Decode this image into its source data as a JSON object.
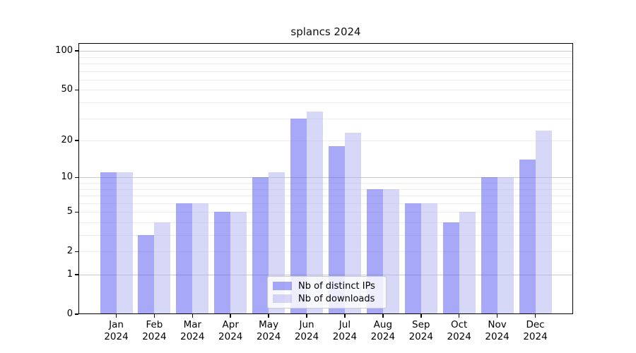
{
  "figure": {
    "title": "splancs 2024"
  },
  "chart_data": {
    "type": "bar",
    "title": "splancs 2024",
    "categories": [
      "Jan 2024",
      "Feb 2024",
      "Mar 2024",
      "Apr 2024",
      "May 2024",
      "Jun 2024",
      "Jul 2024",
      "Aug 2024",
      "Sep 2024",
      "Oct 2024",
      "Nov 2024",
      "Dec 2024"
    ],
    "series": [
      {
        "name": "Nb of distinct IPs",
        "color": "#5858f2",
        "alpha": 0.52,
        "values": [
          11,
          3,
          6,
          5,
          10,
          30,
          18,
          8,
          6,
          4,
          10,
          14
        ]
      },
      {
        "name": "Nb of downloads",
        "color": "#b0b0f2",
        "alpha": 0.5,
        "values": [
          11,
          4,
          6,
          5,
          11,
          34,
          23,
          8,
          6,
          5,
          10,
          24
        ]
      }
    ],
    "yscale": "log1p",
    "ylim": [
      0,
      115
    ],
    "yticks": [
      0,
      1,
      2,
      5,
      10,
      20,
      50,
      100
    ],
    "gridlines_major": [
      1,
      10,
      100
    ],
    "gridlines_minor": [
      2,
      3,
      4,
      5,
      6,
      7,
      8,
      9,
      20,
      30,
      40,
      50,
      60,
      70,
      80,
      90
    ],
    "grid": "on",
    "legend_position": "bottom-center",
    "colors": {
      "grid_major": "#c9c9c9",
      "grid_minor": "#ededed",
      "spine": "#000000",
      "text": "#000000"
    }
  }
}
